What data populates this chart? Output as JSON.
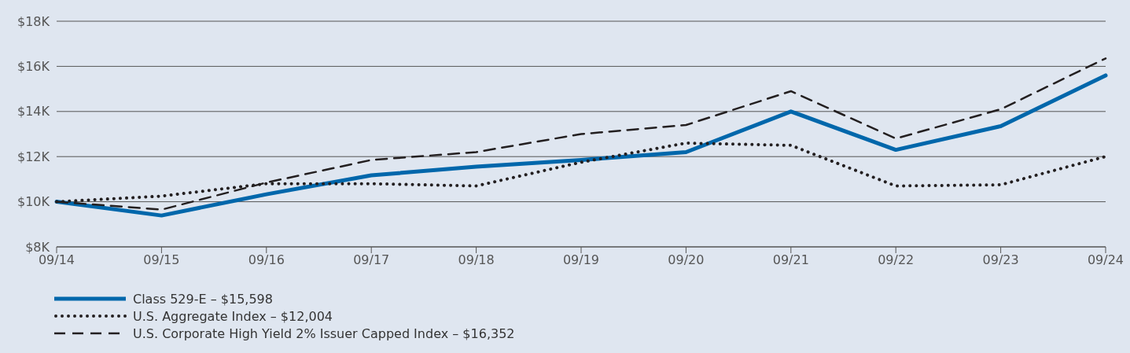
{
  "chart_data": {
    "type": "line",
    "categories": [
      "09/14",
      "09/15",
      "09/16",
      "09/17",
      "09/18",
      "09/19",
      "09/20",
      "09/21",
      "09/22",
      "09/23",
      "09/24"
    ],
    "series": [
      {
        "name": "Class 529-E – $15,598",
        "color": "#0067ab",
        "line_style": "solid",
        "values": [
          10000,
          9390,
          10330,
          11170,
          11550,
          11850,
          12200,
          14000,
          12300,
          13350,
          15598
        ]
      },
      {
        "name": "U.S. Aggregate Index – $12,004",
        "color": "#231f20",
        "line_style": "dotted",
        "values": [
          10000,
          10250,
          10800,
          10800,
          10700,
          11750,
          12600,
          12500,
          10700,
          10750,
          12004
        ]
      },
      {
        "name": "U.S. Corporate High Yield 2% Issuer Capped Index – $16,352",
        "color": "#231f20",
        "line_style": "dashed",
        "values": [
          10000,
          9650,
          10850,
          11850,
          12200,
          13000,
          13400,
          14900,
          12800,
          14100,
          16352
        ]
      }
    ],
    "ylim": [
      8000,
      18000
    ],
    "yticks": [
      {
        "value": 8000,
        "label": "$8K"
      },
      {
        "value": 10000,
        "label": "$10K"
      },
      {
        "value": 12000,
        "label": "$12K"
      },
      {
        "value": 14000,
        "label": "$14K"
      },
      {
        "value": 16000,
        "label": "$16K"
      },
      {
        "value": 18000,
        "label": "$18K"
      }
    ],
    "grid": "y",
    "legend": "bottom",
    "marker": "none"
  }
}
